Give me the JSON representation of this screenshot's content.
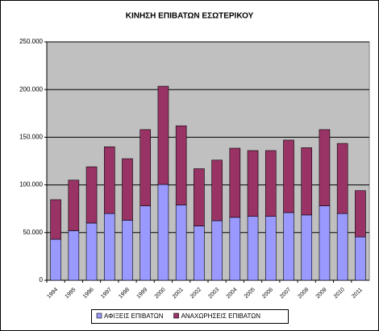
{
  "chart_data": {
    "type": "bar",
    "stacked": true,
    "title": "ΚΙΝΗΣΗ ΕΠΙΒΑΤΩΝ ΕΣΩΤΕΡΙΚΟΥ",
    "categories": [
      "1994",
      "1995",
      "1996",
      "1997",
      "1998",
      "1999",
      "2000",
      "2001",
      "2002",
      "2003",
      "2004",
      "2005",
      "2006",
      "2007",
      "2008",
      "2009",
      "2010",
      "2011"
    ],
    "series": [
      {
        "name": "ΑΦΙΞΕΙΣ ΕΠΙΒΑΤΩΝ",
        "color": "#9999ff",
        "values": [
          43000,
          52000,
          60000,
          70000,
          63000,
          78000,
          100500,
          79000,
          57000,
          62500,
          66000,
          67000,
          67000,
          71000,
          68500,
          78000,
          70000,
          45500
        ]
      },
      {
        "name": "ΑΝΑΧΩΡΗΣΕΙΣ ΕΠΙΒΑΤΩΝ",
        "color": "#993366",
        "values": [
          41500,
          53000,
          59000,
          70000,
          64500,
          80000,
          103000,
          83000,
          60000,
          63500,
          72500,
          69000,
          69000,
          76000,
          70500,
          80000,
          73500,
          48500
        ]
      }
    ],
    "ylim": [
      0,
      250000
    ],
    "yticks": [
      0,
      {
        "value": 50000,
        "label": "50.000"
      },
      {
        "value": 100000,
        "label": "100.000"
      },
      {
        "value": 150000,
        "label": "150.000"
      },
      {
        "value": 200000,
        "label": "200.000"
      },
      {
        "value": 250000,
        "label": "250.000"
      }
    ],
    "grid": true,
    "plot_background": "#c0c0c0",
    "legend": "bottom"
  }
}
